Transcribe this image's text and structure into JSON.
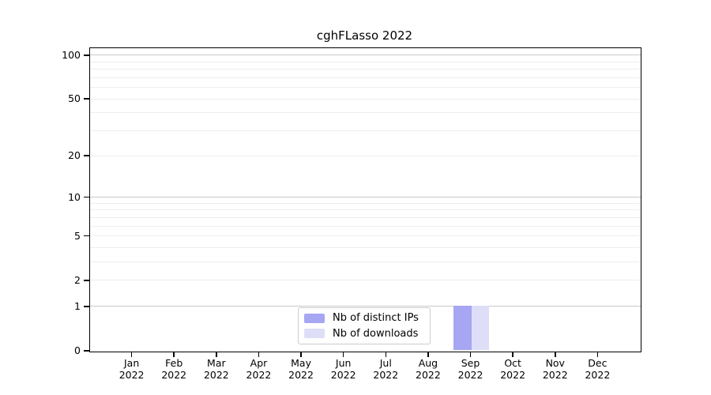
{
  "figure": {
    "background": "#ffffff"
  },
  "chart_data": {
    "type": "bar",
    "title": "cghFLasso 2022",
    "categories": [
      "Jan",
      "Feb",
      "Mar",
      "Apr",
      "May",
      "Jun",
      "Jul",
      "Aug",
      "Sep",
      "Oct",
      "Nov",
      "Dec"
    ],
    "category_year": "2022",
    "series": [
      {
        "name": "Nb of distinct IPs",
        "color": "#a6a6f2",
        "values": [
          0,
          0,
          0,
          0,
          0,
          0,
          0,
          0,
          1,
          0,
          0,
          0
        ]
      },
      {
        "name": "Nb of downloads",
        "color": "#dedef8",
        "values": [
          0,
          0,
          0,
          0,
          0,
          0,
          0,
          0,
          1,
          0,
          0,
          0
        ]
      }
    ],
    "xlabel": "",
    "ylabel": "",
    "y_scale": "log10(1+v)",
    "ylim": [
      0,
      113
    ],
    "y_ticks": [
      0,
      1,
      2,
      5,
      10,
      20,
      50,
      100
    ],
    "y_grid_major": [
      1,
      10,
      100
    ],
    "y_grid_minor": [
      2,
      3,
      4,
      5,
      6,
      7,
      8,
      9,
      20,
      30,
      40,
      50,
      60,
      70,
      80,
      90
    ],
    "grid": "horizontal",
    "legend_position": "inside-bottom-center"
  },
  "colors": {
    "axis": "#000000",
    "grid_major": "#c9c9c9",
    "grid_minor": "#ededed",
    "legend_border": "#cccccc",
    "background": "#ffffff"
  }
}
